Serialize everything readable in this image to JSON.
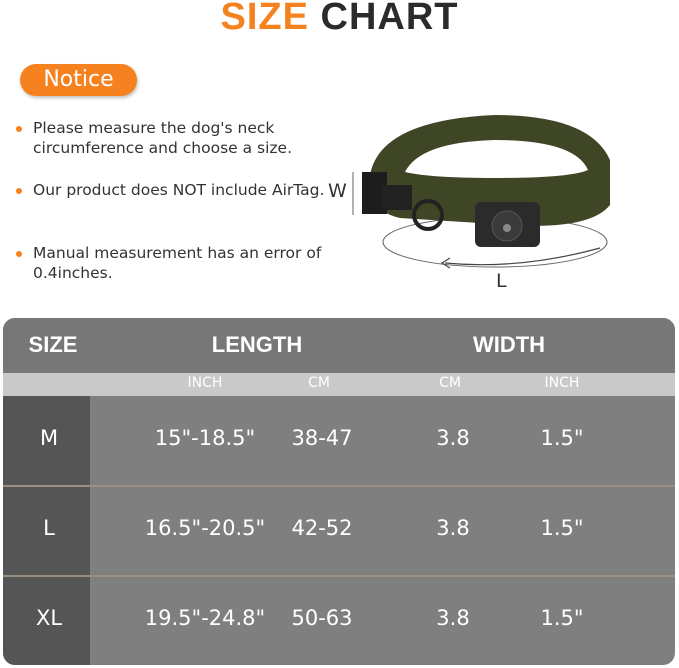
{
  "title": {
    "part1": "SIZE",
    "part2": "CHART"
  },
  "notice": {
    "label": "Notice",
    "bullets": [
      "Please measure the dog's neck circumference and choose a size.",
      "Our product does NOT include AirTag.",
      "Manual measurement has an error of 0.4inches."
    ]
  },
  "diagram": {
    "width_label": "W",
    "length_label": "L"
  },
  "colors": {
    "accent": "#f5821f",
    "collar": "#3f4626"
  },
  "table": {
    "headers": [
      "SIZE",
      "LENGTH",
      "WIDTH"
    ],
    "subheaders": [
      "INCH",
      "CM",
      "CM",
      "INCH"
    ],
    "rows": [
      {
        "size": "M",
        "len_inch": "15\"-18.5\"",
        "len_cm": "38-47",
        "wid_cm": "3.8",
        "wid_inch": "1.5\""
      },
      {
        "size": "L",
        "len_inch": "16.5\"-20.5\"",
        "len_cm": "42-52",
        "wid_cm": "3.8",
        "wid_inch": "1.5\""
      },
      {
        "size": "XL",
        "len_inch": "19.5\"-24.8\"",
        "len_cm": "50-63",
        "wid_cm": "3.8",
        "wid_inch": "1.5\""
      }
    ]
  }
}
